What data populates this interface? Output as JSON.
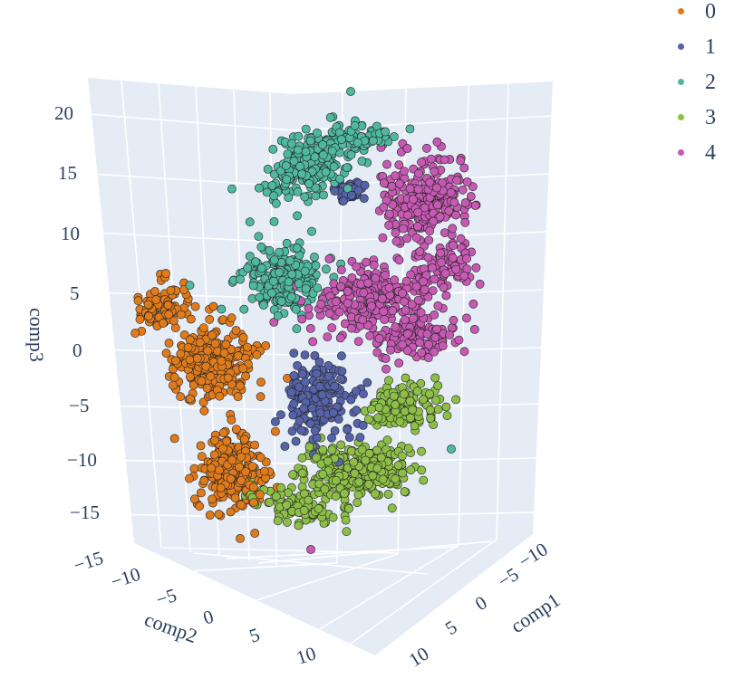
{
  "chart_data": {
    "type": "scatter3d",
    "axes": {
      "x": {
        "label": "comp1",
        "ticks": [
          "−10",
          "−5",
          "0",
          "5",
          "10"
        ]
      },
      "y": {
        "label": "comp2",
        "ticks": [
          "−15",
          "−10",
          "−5",
          "0",
          "5",
          "10"
        ]
      },
      "z": {
        "label": "comp3",
        "ticks": [
          "20",
          "15",
          "10",
          "5",
          "0",
          "−5",
          "−10",
          "−15"
        ]
      }
    },
    "legend": {
      "placement": "top-right",
      "entries": [
        {
          "label": "0",
          "color": "#e07b1c"
        },
        {
          "label": "1",
          "color": "#5663a8"
        },
        {
          "label": "2",
          "color": "#4fb89e"
        },
        {
          "label": "3",
          "color": "#8dbf47"
        },
        {
          "label": "4",
          "color": "#c659b2"
        }
      ]
    },
    "series": [
      {
        "name": "0",
        "color": "#e07b1c"
      },
      {
        "name": "1",
        "color": "#5663a8"
      },
      {
        "name": "2",
        "color": "#4fb89e"
      },
      {
        "name": "3",
        "color": "#8dbf47"
      },
      {
        "name": "4",
        "color": "#c659b2"
      }
    ]
  }
}
